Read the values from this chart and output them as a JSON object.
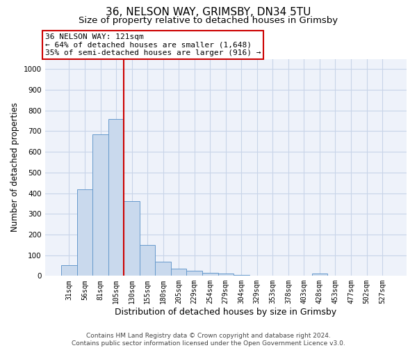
{
  "title_line1": "36, NELSON WAY, GRIMSBY, DN34 5TU",
  "title_line2": "Size of property relative to detached houses in Grimsby",
  "xlabel": "Distribution of detached houses by size in Grimsby",
  "ylabel": "Number of detached properties",
  "categories": [
    "31sqm",
    "56sqm",
    "81sqm",
    "105sqm",
    "130sqm",
    "155sqm",
    "180sqm",
    "205sqm",
    "229sqm",
    "254sqm",
    "279sqm",
    "304sqm",
    "329sqm",
    "353sqm",
    "378sqm",
    "403sqm",
    "428sqm",
    "453sqm",
    "477sqm",
    "502sqm",
    "527sqm"
  ],
  "values": [
    50,
    420,
    685,
    760,
    360,
    150,
    70,
    35,
    25,
    15,
    10,
    5,
    0,
    0,
    0,
    0,
    10,
    0,
    0,
    0,
    0
  ],
  "bar_color": "#c9d9ed",
  "bar_edge_color": "#6699cc",
  "red_line_x": 3.5,
  "red_line_color": "#cc0000",
  "annotation_text": "36 NELSON WAY: 121sqm\n← 64% of detached houses are smaller (1,648)\n35% of semi-detached houses are larger (916) →",
  "annotation_box_color": "#ffffff",
  "annotation_box_edge": "#cc0000",
  "ylim": [
    0,
    1050
  ],
  "yticks": [
    0,
    100,
    200,
    300,
    400,
    500,
    600,
    700,
    800,
    900,
    1000
  ],
  "grid_color": "#c8d4e8",
  "background_color": "#eef2fa",
  "footer_line1": "Contains HM Land Registry data © Crown copyright and database right 2024.",
  "footer_line2": "Contains public sector information licensed under the Open Government Licence v3.0.",
  "title_fontsize": 11,
  "subtitle_fontsize": 9.5,
  "tick_fontsize": 7,
  "ylabel_fontsize": 8.5,
  "xlabel_fontsize": 9,
  "annotation_fontsize": 8,
  "footer_fontsize": 6.5
}
